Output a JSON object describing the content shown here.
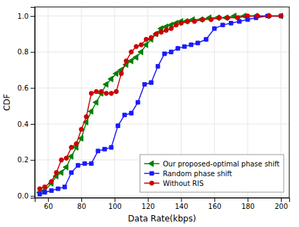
{
  "chart_data": {
    "type": "line",
    "xlabel": "Data Rate(kbps)",
    "ylabel": "CDF",
    "xlim": [
      52,
      205
    ],
    "ylim": [
      -0.01,
      1.05
    ],
    "xticks": [
      60,
      80,
      100,
      120,
      140,
      160,
      180,
      200
    ],
    "yticks": [
      {
        "value": 0.0,
        "label": "0.0"
      },
      0.2,
      0.4,
      0.6,
      0.8,
      {
        "value": 1.0,
        "label": "1.0"
      }
    ],
    "grid": true,
    "legend": "lower right",
    "series": [
      {
        "name": "Our proposed-optimal phase shift",
        "color": "#008000",
        "marker": "triangle-left",
        "x": [
          55,
          58,
          62,
          65,
          68,
          71,
          74,
          77,
          80,
          83,
          86,
          89,
          92,
          95,
          98,
          101,
          104,
          107,
          110,
          113,
          116,
          119,
          122,
          125,
          128,
          131,
          134,
          137,
          140,
          143,
          147,
          152,
          157,
          162,
          167,
          172,
          178,
          185,
          192,
          200
        ],
        "values": [
          0.02,
          0.03,
          0.07,
          0.11,
          0.13,
          0.16,
          0.22,
          0.27,
          0.32,
          0.41,
          0.47,
          0.52,
          0.57,
          0.62,
          0.65,
          0.68,
          0.7,
          0.73,
          0.75,
          0.77,
          0.8,
          0.84,
          0.87,
          0.9,
          0.93,
          0.94,
          0.95,
          0.96,
          0.97,
          0.97,
          0.98,
          0.98,
          0.99,
          0.99,
          0.99,
          1.0,
          1.0,
          1.0,
          1.0,
          1.0
        ]
      },
      {
        "name": "Random phase shift",
        "color": "#1a1aff",
        "marker": "square",
        "x": [
          55,
          58,
          62,
          66,
          70,
          74,
          78,
          82,
          86,
          90,
          94,
          98,
          102,
          106,
          110,
          114,
          118,
          122,
          126,
          130,
          134,
          138,
          142,
          146,
          150,
          155,
          160,
          165,
          170,
          175,
          180,
          185,
          192,
          200
        ],
        "values": [
          0.01,
          0.02,
          0.03,
          0.04,
          0.05,
          0.13,
          0.17,
          0.18,
          0.18,
          0.25,
          0.26,
          0.27,
          0.39,
          0.45,
          0.46,
          0.52,
          0.62,
          0.63,
          0.72,
          0.79,
          0.8,
          0.82,
          0.83,
          0.84,
          0.85,
          0.87,
          0.93,
          0.95,
          0.96,
          0.97,
          0.98,
          0.99,
          1.0,
          1.0
        ]
      },
      {
        "name": "Without RIS",
        "color": "#cc0000",
        "marker": "circle",
        "x": [
          55,
          58,
          62,
          65,
          68,
          71,
          74,
          77,
          80,
          83,
          86,
          89,
          92,
          95,
          98,
          101,
          104,
          107,
          110,
          113,
          116,
          119,
          122,
          125,
          128,
          131,
          134,
          137,
          140,
          144,
          148,
          153,
          158,
          163,
          168,
          174,
          180,
          186,
          193,
          200
        ],
        "values": [
          0.04,
          0.05,
          0.08,
          0.13,
          0.2,
          0.21,
          0.27,
          0.29,
          0.37,
          0.44,
          0.57,
          0.58,
          0.58,
          0.57,
          0.57,
          0.58,
          0.68,
          0.75,
          0.8,
          0.83,
          0.84,
          0.87,
          0.88,
          0.9,
          0.91,
          0.92,
          0.93,
          0.95,
          0.96,
          0.97,
          0.97,
          0.98,
          0.98,
          0.99,
          0.99,
          0.99,
          1.0,
          1.0,
          1.0,
          1.0
        ]
      }
    ]
  }
}
